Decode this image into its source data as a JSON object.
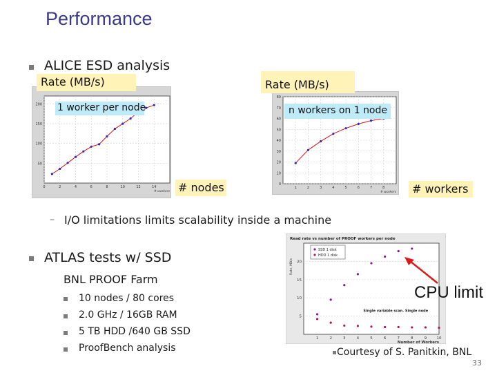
{
  "slide": {
    "title": "Performance",
    "page_number": "33"
  },
  "section_alice": {
    "bullet": "ALICE ESD analysis",
    "callout_left_rate": "Rate (MB/s)",
    "callout_right_rate": "Rate (MB/s)",
    "label_left": "1 worker per node",
    "label_right": "n workers on 1 node",
    "xlabel_left": "# nodes",
    "xlabel_right": "# workers",
    "sub_bullet_dash": "–",
    "sub_bullet": "I/O limitations limits scalability inside a machine"
  },
  "section_atlas": {
    "bullet": "ATLAS tests w/ SSD",
    "farm": "BNL PROOF Farm",
    "items": [
      "10 nodes / 80 cores",
      "2.0 GHz / 16GB RAM",
      "5 TB  HDD  /640 GB SSD",
      "ProofBench analysis"
    ],
    "cpu_limit": "CPU limit",
    "courtesy": "Courtesy of S. Panitkin, BNL"
  },
  "chart_data": [
    {
      "type": "line",
      "title": "",
      "xlabel": "# workers",
      "ylabel": "",
      "xlim": [
        0,
        16
      ],
      "ylim": [
        0,
        220
      ],
      "xticks": [
        0,
        2,
        4,
        6,
        8,
        10,
        12,
        14
      ],
      "yticks": [
        50,
        100,
        150,
        200
      ],
      "x": [
        1,
        2,
        3,
        4,
        5,
        6,
        7,
        8,
        9,
        10,
        11,
        12,
        13,
        14
      ],
      "series": [
        {
          "values": [
            23,
            36,
            51,
            66,
            80,
            92,
            98,
            118,
            137,
            150,
            163,
            180,
            190,
            197
          ]
        }
      ],
      "color": "#dd1111",
      "grid": true
    },
    {
      "type": "line",
      "title": "",
      "xlabel": "# workers",
      "ylabel": "",
      "xlim": [
        0,
        9
      ],
      "ylim": [
        0,
        80
      ],
      "xticks": [
        1,
        2,
        3,
        4,
        5,
        6,
        7,
        8
      ],
      "yticks": [
        0,
        10,
        20,
        30,
        40,
        50,
        60,
        70,
        80
      ],
      "x": [
        1,
        2,
        3,
        4,
        5,
        6,
        7,
        8
      ],
      "series": [
        {
          "values": [
            19,
            31,
            39,
            46,
            51,
            55,
            58,
            60
          ]
        }
      ],
      "color": "#dd1111",
      "grid": true
    },
    {
      "type": "scatter",
      "title": "Read rate vs number of PROOF workers per node",
      "xlabel": "Number of Workers",
      "ylabel": "Rate, MB/s",
      "xlim": [
        0,
        10
      ],
      "ylim": [
        0,
        25
      ],
      "xticks": [
        1,
        2,
        3,
        4,
        5,
        6,
        7,
        8,
        9,
        10
      ],
      "yticks": [
        5,
        10,
        15,
        20
      ],
      "legend_entries": [
        "SSD 1 disk",
        "HDD 1 disk"
      ],
      "note": "Single variable scan. Single node",
      "series": [
        {
          "name": "SSD 1 disk",
          "color": "#8a1a9a",
          "x": [
            1,
            2,
            3,
            4,
            5,
            6,
            7,
            8
          ],
          "values": [
            5.5,
            9.5,
            13.5,
            16.5,
            19.5,
            21.3,
            22.8,
            23.5
          ]
        },
        {
          "name": "HDD 1 disk",
          "color": "#b0185a",
          "x": [
            1,
            2,
            3,
            4,
            5,
            6,
            7,
            8,
            9,
            10
          ],
          "values": [
            4.2,
            3.2,
            2.4,
            2.3,
            2.1,
            2.0,
            2.0,
            1.9,
            1.9,
            1.8
          ]
        }
      ],
      "grid": true
    }
  ]
}
